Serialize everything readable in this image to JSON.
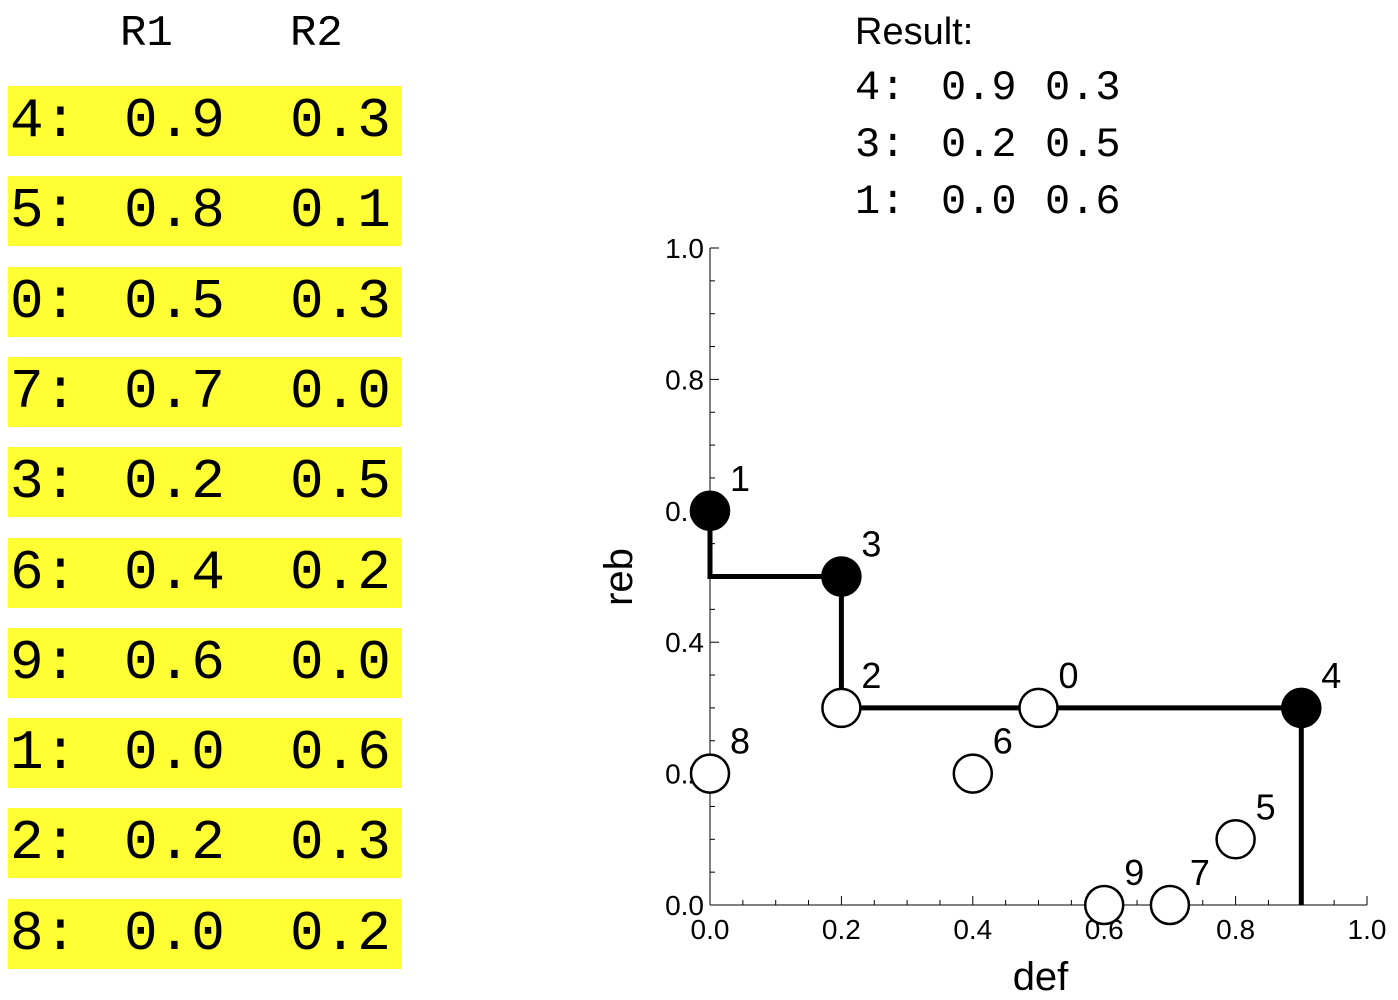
{
  "table": {
    "headers": [
      "R1",
      "R2"
    ],
    "rows": [
      {
        "id": "4:",
        "r1": "0.9",
        "r2": "0.3"
      },
      {
        "id": "5:",
        "r1": "0.8",
        "r2": "0.1"
      },
      {
        "id": "0:",
        "r1": "0.5",
        "r2": "0.3"
      },
      {
        "id": "7:",
        "r1": "0.7",
        "r2": "0.0"
      },
      {
        "id": "3:",
        "r1": "0.2",
        "r2": "0.5"
      },
      {
        "id": "6:",
        "r1": "0.4",
        "r2": "0.2"
      },
      {
        "id": "9:",
        "r1": "0.6",
        "r2": "0.0"
      },
      {
        "id": "1:",
        "r1": "0.0",
        "r2": "0.6"
      },
      {
        "id": "2:",
        "r1": "0.2",
        "r2": "0.3"
      },
      {
        "id": "8:",
        "r1": "0.0",
        "r2": "0.2"
      }
    ],
    "highlight_color": "#ffff33"
  },
  "result": {
    "title": "Result:",
    "lines": [
      {
        "id": "4:",
        "a": "0.9",
        "b": "0.3"
      },
      {
        "id": "3:",
        "a": "0.2",
        "b": "0.5"
      },
      {
        "id": "1:",
        "a": "0.0",
        "b": "0.6"
      }
    ]
  },
  "chart_data": {
    "type": "scatter",
    "xlabel": "def",
    "ylabel": "reb",
    "xlim": [
      0,
      1
    ],
    "ylim": [
      0,
      1
    ],
    "xticks": [
      "0.0",
      "0.2",
      "0.4",
      "0.6",
      "0.8",
      "1.0"
    ],
    "yticks": [
      "0.0",
      "0.2",
      "0.4",
      "0.6",
      "0.8",
      "1.0"
    ],
    "points": [
      {
        "label": "0",
        "x": 0.5,
        "y": 0.3,
        "filled": false
      },
      {
        "label": "1",
        "x": 0.0,
        "y": 0.6,
        "filled": true
      },
      {
        "label": "2",
        "x": 0.2,
        "y": 0.3,
        "filled": false
      },
      {
        "label": "3",
        "x": 0.2,
        "y": 0.5,
        "filled": true
      },
      {
        "label": "4",
        "x": 0.9,
        "y": 0.3,
        "filled": true
      },
      {
        "label": "5",
        "x": 0.8,
        "y": 0.1,
        "filled": false
      },
      {
        "label": "6",
        "x": 0.4,
        "y": 0.2,
        "filled": false
      },
      {
        "label": "7",
        "x": 0.7,
        "y": 0.0,
        "filled": false
      },
      {
        "label": "8",
        "x": 0.0,
        "y": 0.2,
        "filled": false
      },
      {
        "label": "9",
        "x": 0.6,
        "y": 0.0,
        "filled": false
      }
    ],
    "staircase": [
      [
        0.0,
        0.6
      ],
      [
        0.0,
        0.5
      ],
      [
        0.2,
        0.5
      ],
      [
        0.2,
        0.3
      ],
      [
        0.9,
        0.3
      ],
      [
        0.9,
        0.0
      ]
    ]
  }
}
